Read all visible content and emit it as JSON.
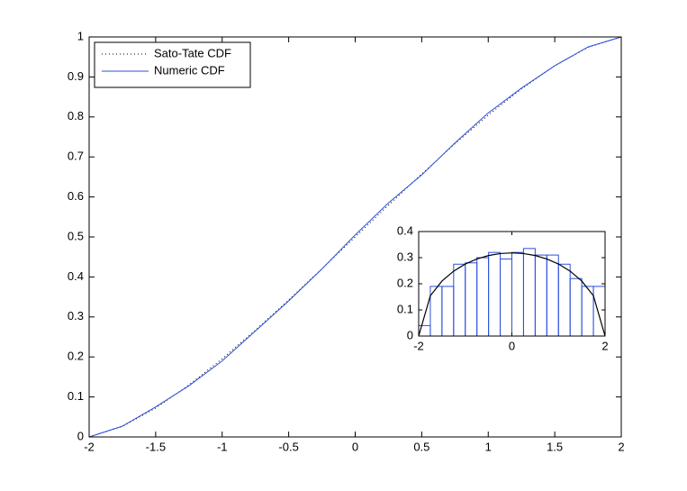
{
  "chart_data": [
    {
      "type": "line",
      "x": [
        -2,
        -1.75,
        -1.5,
        -1.25,
        -1,
        -0.75,
        -0.5,
        -0.25,
        0,
        0.25,
        0.5,
        0.75,
        1,
        1.25,
        1.5,
        1.75,
        2
      ],
      "series": [
        {
          "name": "Sato-Tate CDF",
          "color": "#000000",
          "line_style": "dotted",
          "values": [
            0,
            0.0261,
            0.0721,
            0.1298,
            0.1955,
            0.2669,
            0.3425,
            0.4206,
            0.5,
            0.5794,
            0.6575,
            0.7331,
            0.8045,
            0.8702,
            0.9279,
            0.9739,
            1
          ]
        },
        {
          "name": "Numeric CDF",
          "color": "#2b4fd9",
          "line_style": "solid",
          "values": [
            0,
            0.027,
            0.075,
            0.128,
            0.19,
            0.265,
            0.34,
            0.42,
            0.505,
            0.585,
            0.655,
            0.735,
            0.81,
            0.872,
            0.928,
            0.975,
            1
          ]
        }
      ],
      "xlim": [
        -2,
        2
      ],
      "ylim": [
        0,
        1
      ],
      "xticks": [
        -2,
        -1.5,
        -1,
        -0.5,
        0,
        0.5,
        1,
        1.5,
        2
      ],
      "yticks": [
        0,
        0.1,
        0.2,
        0.3,
        0.4,
        0.5,
        0.6,
        0.7,
        0.8,
        0.9,
        1
      ],
      "grid": false,
      "legend": "upper-left"
    },
    {
      "type": "histogram",
      "bins": [
        -2,
        -1.75,
        -1.5,
        -1.25,
        -1,
        -0.75,
        -0.5,
        -0.25,
        0,
        0.25,
        0.5,
        0.75,
        1,
        1.25,
        1.5,
        1.75,
        2
      ],
      "counts": [
        0.04,
        0.19,
        0.19,
        0.275,
        0.28,
        0.3,
        0.32,
        0.295,
        0.32,
        0.335,
        0.31,
        0.31,
        0.275,
        0.22,
        0.19,
        0.19
      ],
      "color": "#2b4fd9",
      "curve": {
        "color": "#000000",
        "x": [
          -2,
          -1.75,
          -1.5,
          -1.25,
          -1,
          -0.75,
          -0.5,
          -0.25,
          0,
          0.25,
          0.5,
          0.75,
          1,
          1.25,
          1.5,
          1.75,
          2
        ],
        "values": [
          0,
          0.1541,
          0.2105,
          0.2485,
          0.2757,
          0.2951,
          0.3082,
          0.3158,
          0.3183,
          0.3158,
          0.3082,
          0.2951,
          0.2757,
          0.2485,
          0.2105,
          0.1541,
          0
        ]
      },
      "xlim": [
        -2,
        2
      ],
      "ylim": [
        0,
        0.4
      ],
      "xticks": [
        -2,
        0,
        2
      ],
      "yticks": [
        0,
        0.1,
        0.2,
        0.3,
        0.4
      ],
      "grid": false
    }
  ]
}
